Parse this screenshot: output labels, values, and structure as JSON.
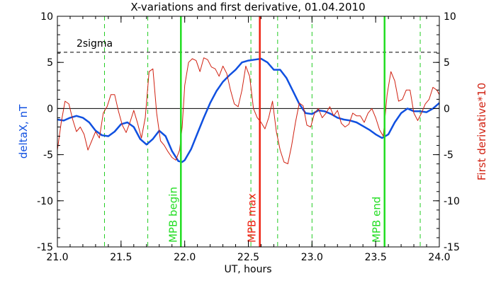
{
  "chart_data": {
    "type": "line",
    "title": "X-variations and first derivative, 01.04.2010",
    "xlabel": "UT, hours",
    "ylabel_left": "deltaX, nT",
    "ylabel_right": "First derivative*10",
    "xlim": [
      21.0,
      24.0
    ],
    "ylim": [
      -15,
      10
    ],
    "x_ticks": [
      21.0,
      21.5,
      22.0,
      22.5,
      23.0,
      23.5,
      24.0
    ],
    "x_tick_labels": [
      "21.0",
      "21.5",
      "22.0",
      "22.5",
      "23.0",
      "23.5",
      "24.0"
    ],
    "y_ticks": [
      -15,
      -10,
      -5,
      0,
      5,
      10
    ],
    "y_tick_labels": [
      "-15",
      "-10",
      "-5",
      "0",
      "5",
      "10"
    ],
    "grid": false,
    "colors": {
      "deltaX": "#1050e0",
      "derivative": "#d02010",
      "mpb_boundary": "#22dd22",
      "mpb_max": "#ee2010",
      "minor_markers": "#22cc22",
      "reference": "#000000"
    },
    "threshold": {
      "label": "2sigma",
      "value": 6.1
    },
    "zero_line": 0,
    "vertical_markers": [
      {
        "x": 21.97,
        "label": "MPB begin",
        "kind": "boundary"
      },
      {
        "x": 22.59,
        "label": "MPB max",
        "kind": "max"
      },
      {
        "x": 23.57,
        "label": "MPB end",
        "kind": "boundary"
      }
    ],
    "dashed_markers": [
      21.37,
      21.71,
      22.52,
      22.73,
      23.0,
      23.85
    ],
    "series": [
      {
        "key": "deltaX",
        "x": [
          21.0,
          21.05,
          21.1,
          21.15,
          21.2,
          21.25,
          21.3,
          21.35,
          21.4,
          21.45,
          21.5,
          21.55,
          21.6,
          21.65,
          21.7,
          21.75,
          21.8,
          21.85,
          21.9,
          21.95,
          21.98,
          22.0,
          22.05,
          22.1,
          22.15,
          22.2,
          22.25,
          22.3,
          22.35,
          22.4,
          22.45,
          22.5,
          22.55,
          22.6,
          22.65,
          22.7,
          22.75,
          22.8,
          22.85,
          22.9,
          22.95,
          23.0,
          23.05,
          23.1,
          23.15,
          23.2,
          23.25,
          23.3,
          23.35,
          23.4,
          23.45,
          23.5,
          23.55,
          23.6,
          23.65,
          23.7,
          23.75,
          23.8,
          23.85,
          23.9,
          23.95,
          24.0
        ],
        "y": [
          -1.2,
          -1.3,
          -1.0,
          -0.8,
          -1.0,
          -1.5,
          -2.4,
          -2.9,
          -3.0,
          -2.5,
          -1.7,
          -1.5,
          -2.0,
          -3.3,
          -3.9,
          -3.3,
          -2.4,
          -3.0,
          -4.6,
          -5.7,
          -5.8,
          -5.6,
          -4.4,
          -2.7,
          -1.0,
          0.6,
          1.9,
          2.9,
          3.6,
          4.2,
          5.0,
          5.2,
          5.3,
          5.4,
          5.0,
          4.2,
          4.2,
          3.3,
          1.9,
          0.5,
          -0.5,
          -0.6,
          -0.2,
          -0.3,
          -0.6,
          -1.0,
          -1.2,
          -1.3,
          -1.5,
          -1.9,
          -2.3,
          -2.8,
          -3.2,
          -2.8,
          -1.5,
          -0.5,
          0.0,
          -0.3,
          -0.3,
          -0.4,
          0.0,
          0.6
        ]
      },
      {
        "key": "derivative",
        "x": [
          21.0,
          21.03,
          21.06,
          21.09,
          21.12,
          21.15,
          21.18,
          21.21,
          21.24,
          21.27,
          21.3,
          21.33,
          21.36,
          21.39,
          21.42,
          21.45,
          21.48,
          21.51,
          21.54,
          21.57,
          21.6,
          21.63,
          21.66,
          21.69,
          21.72,
          21.75,
          21.78,
          21.81,
          21.84,
          21.87,
          21.9,
          21.93,
          21.96,
          21.98,
          22.0,
          22.03,
          22.06,
          22.09,
          22.12,
          22.15,
          22.18,
          22.21,
          22.24,
          22.27,
          22.3,
          22.33,
          22.36,
          22.39,
          22.42,
          22.45,
          22.48,
          22.51,
          22.54,
          22.57,
          22.6,
          22.63,
          22.66,
          22.69,
          22.72,
          22.75,
          22.78,
          22.81,
          22.84,
          22.87,
          22.9,
          22.93,
          22.96,
          22.99,
          23.02,
          23.05,
          23.08,
          23.11,
          23.14,
          23.17,
          23.2,
          23.23,
          23.26,
          23.29,
          23.32,
          23.35,
          23.38,
          23.41,
          23.44,
          23.47,
          23.5,
          23.53,
          23.56,
          23.59,
          23.62,
          23.65,
          23.68,
          23.71,
          23.74,
          23.77,
          23.8,
          23.83,
          23.86,
          23.89,
          23.92,
          23.95,
          23.98,
          24.0
        ],
        "y": [
          -4.5,
          -1.5,
          0.8,
          0.5,
          -1.2,
          -2.5,
          -2.0,
          -2.8,
          -4.5,
          -3.5,
          -2.5,
          -3.2,
          -0.5,
          0.2,
          1.5,
          1.5,
          -0.3,
          -1.8,
          -2.6,
          -1.5,
          -0.2,
          -1.6,
          -3.2,
          -1.0,
          4.0,
          4.3,
          -0.5,
          -3.5,
          -4.0,
          -4.7,
          -5.3,
          -5.6,
          -4.5,
          -2.0,
          2.5,
          5.0,
          5.4,
          5.2,
          4.0,
          5.5,
          5.3,
          4.5,
          4.3,
          3.5,
          4.6,
          3.8,
          2.0,
          0.5,
          0.2,
          2.0,
          4.6,
          3.5,
          0.0,
          -1.0,
          -1.5,
          -2.2,
          -1.0,
          0.8,
          -2.5,
          -4.5,
          -5.8,
          -6.0,
          -4.0,
          -1.5,
          0.6,
          0.3,
          -1.8,
          -2.0,
          -0.5,
          0.0,
          -1.0,
          -0.5,
          0.2,
          -0.8,
          -0.2,
          -1.6,
          -2.0,
          -1.7,
          -0.5,
          -0.8,
          -0.8,
          -1.5,
          -0.5,
          0.0,
          -1.0,
          -2.3,
          -3.0,
          1.5,
          4.0,
          3.0,
          0.8,
          1.0,
          2.0,
          2.0,
          -0.5,
          -1.3,
          -0.5,
          0.5,
          1.0,
          2.3,
          2.0,
          1.5
        ]
      }
    ]
  }
}
